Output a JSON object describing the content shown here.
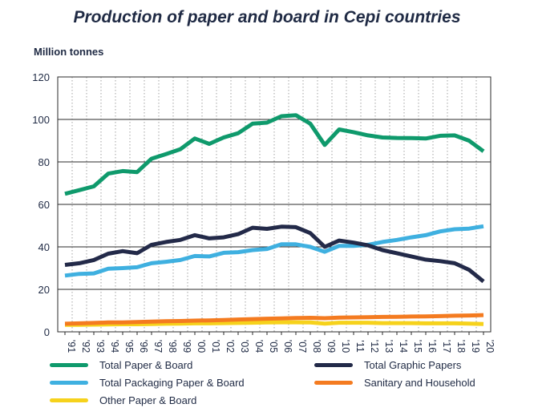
{
  "chart_data": {
    "type": "line",
    "title": "Production of paper and board in Cepi countries",
    "ylabel": "Million tonnes",
    "xlabel": "",
    "ylim": [
      0,
      120
    ],
    "yticks": [
      0,
      20,
      40,
      60,
      80,
      100,
      120
    ],
    "grid": "horizontal solid, vertical dotted",
    "legend_position": "bottom",
    "categories": [
      "'91",
      "'92",
      "'93",
      "'94",
      "'95",
      "'96",
      "'97",
      "'98",
      "'99",
      "'00",
      "'01",
      "'02",
      "'03",
      "'04",
      "'05",
      "'06",
      "'07",
      "'08",
      "'09",
      "'10",
      "'11",
      "'12",
      "'13",
      "'14",
      "'15",
      "'16",
      "'17",
      "'18",
      "'19",
      "'20"
    ],
    "series": [
      {
        "name": "Total Paper & Board",
        "color": "#0f9a6c",
        "values": [
          65,
          66.7,
          68.5,
          74.5,
          75.7,
          75.2,
          81.5,
          83.7,
          86,
          91,
          88.5,
          91.5,
          93.5,
          98,
          98.5,
          101.5,
          102,
          98,
          88,
          95.3,
          94,
          92.5,
          91.5,
          91.3,
          91.2,
          91,
          92.3,
          92.5,
          90,
          85
        ]
      },
      {
        "name": "Total Graphic Papers",
        "color": "#232a49",
        "values": [
          31.5,
          32.3,
          33.8,
          36.8,
          38,
          37,
          41,
          42.3,
          43.3,
          45.5,
          44,
          44.5,
          46,
          49,
          48.5,
          49.5,
          49.3,
          46.5,
          40,
          43,
          42,
          40.7,
          38.5,
          37,
          35.5,
          34,
          33.3,
          32.3,
          29.2,
          23.7
        ]
      },
      {
        "name": "Total Packaging Paper & Board",
        "color": "#3fb0e0",
        "values": [
          26.5,
          27.3,
          27.5,
          29.7,
          30,
          30.4,
          32.3,
          33,
          33.8,
          35.7,
          35.5,
          37.2,
          37.5,
          38.5,
          39,
          41.2,
          41.2,
          40,
          37.7,
          40.5,
          40.5,
          41,
          42.3,
          43.3,
          44.5,
          45.5,
          47.3,
          48.3,
          48.6,
          49.7
        ]
      },
      {
        "name": "Sanitary and Household",
        "color": "#f47b20",
        "values": [
          3.8,
          4,
          4.2,
          4.4,
          4.4,
          4.6,
          4.8,
          5,
          5.1,
          5.3,
          5.4,
          5.6,
          5.8,
          6,
          6.2,
          6.3,
          6.5,
          6.6,
          6.4,
          6.7,
          6.8,
          6.9,
          7,
          7.1,
          7.2,
          7.3,
          7.4,
          7.6,
          7.7,
          7.9
        ]
      },
      {
        "name": "Other Paper & Board",
        "color": "#f6d21c",
        "values": [
          3.3,
          3.3,
          3.4,
          3.5,
          3.6,
          3.6,
          3.7,
          3.8,
          3.9,
          4,
          4,
          4.1,
          4.2,
          4.3,
          4.4,
          4.5,
          4.5,
          4.4,
          3.9,
          4.3,
          4.3,
          4.3,
          4.1,
          4.1,
          4.1,
          4,
          4,
          4,
          3.9,
          3.7
        ]
      }
    ]
  }
}
